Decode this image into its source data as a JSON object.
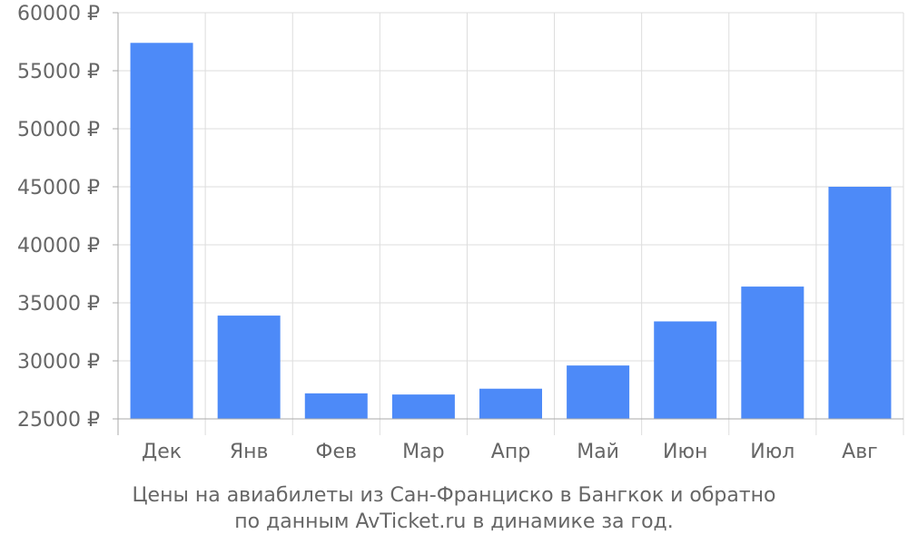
{
  "chart_data": {
    "type": "bar",
    "categories": [
      "Дек",
      "Янв",
      "Фев",
      "Мар",
      "Апр",
      "Май",
      "Июн",
      "Июл",
      "Авг"
    ],
    "values": [
      57400,
      33900,
      27200,
      27100,
      27600,
      29600,
      33400,
      36400,
      45000
    ],
    "ylim": [
      25000,
      60000
    ],
    "yticks": [
      25000,
      30000,
      35000,
      40000,
      45000,
      50000,
      55000,
      60000
    ],
    "currency": "₽",
    "grid": true,
    "bar_color": "#4d8af8",
    "caption_line1": "Цены на авиабилеты из Сан-Франциско в Бангкок и обратно",
    "caption_line2": "по данным AvTicket.ru в динамике за год."
  }
}
